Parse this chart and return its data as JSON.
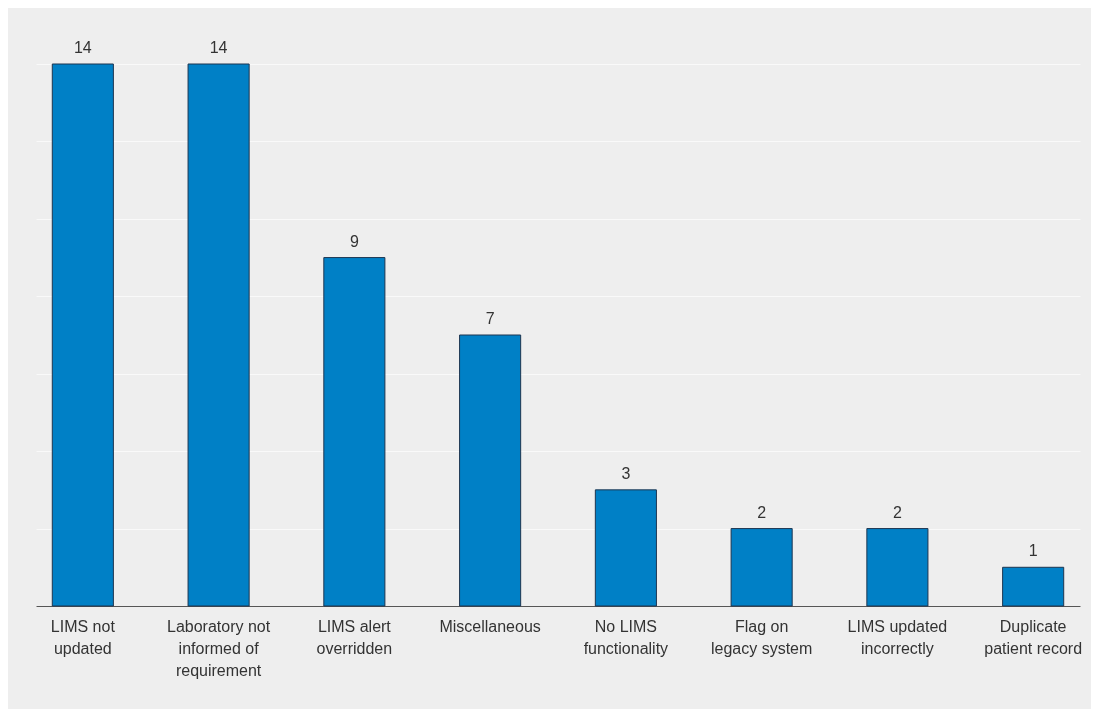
{
  "chart_data": {
    "type": "bar",
    "categories": [
      "LIMS not\nupdated",
      "Laboratory not\ninformed of\nrequirement",
      "LIMS alert\noverridden",
      "Miscellaneous",
      "No LIMS\nfunctionality",
      "Flag on\nlegacy system",
      "LIMS updated\nincorrectly",
      "Duplicate\npatient record"
    ],
    "values": [
      14,
      14,
      9,
      7,
      3,
      2,
      2,
      1
    ],
    "color": "#0080c6",
    "ylim": [
      0,
      14
    ],
    "yticks": [
      {
        "value": 0,
        "label": null
      },
      {
        "value": 2,
        "label": null
      },
      {
        "value": 4,
        "label": null
      },
      {
        "value": 6,
        "label": null
      },
      {
        "value": 8,
        "label": null
      },
      {
        "value": 10,
        "label": null
      },
      {
        "value": 12,
        "label": null
      },
      {
        "value": 14,
        "label": null
      }
    ],
    "grid": "y",
    "tick_labels": "x",
    "data_labels": true
  }
}
